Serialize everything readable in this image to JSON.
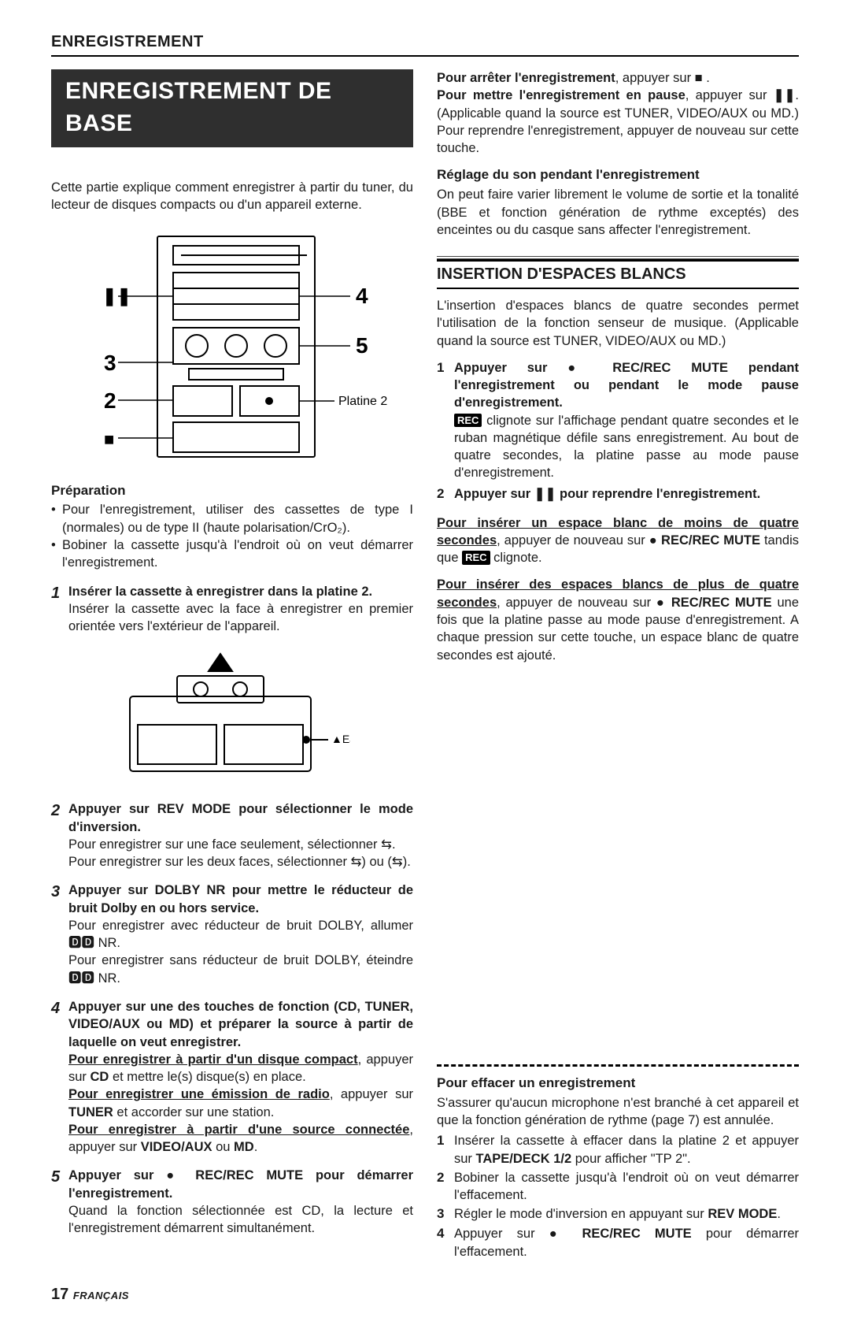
{
  "header": "ENREGISTREMENT",
  "title": "ENREGISTREMENT DE BASE",
  "left": {
    "intro": "Cette partie explique comment enregistrer à partir du tuner, du lecteur de disques compacts ou d'un appareil externe.",
    "diagram1": {
      "labels": {
        "n2": "2",
        "n3": "3",
        "n4": "4",
        "n5": "5",
        "platine": "Platine 2",
        "pause": "❚❚",
        "stop": "■"
      }
    },
    "prep_title": "Préparation",
    "prep": [
      "Pour l'enregistrement, utiliser des cassettes de type I (normales) ou de type II (haute polarisation/CrO₂).",
      "Bobiner la cassette jusqu'à l'endroit où on veut démarrer l'enregistrement."
    ],
    "steps": [
      {
        "num": "1",
        "title": "Insérer la cassette à enregistrer dans la platine 2.",
        "body": "Insérer la cassette avec la face à enregistrer en premier orientée vers l'extérieur de l'appareil."
      },
      {
        "num": "2",
        "title": "Appuyer sur REV MODE pour sélectionner le mode d'inversion.",
        "body": "Pour enregistrer sur une face seulement, sélectionner ⇆.\nPour enregistrer sur les deux faces, sélectionner ⇆) ou (⇆)."
      },
      {
        "num": "3",
        "title": "Appuyer sur DOLBY NR pour mettre le réducteur de bruit Dolby en ou hors service.",
        "body": "Pour enregistrer avec réducteur de bruit DOLBY, allumer 🅳🅳 NR.\nPour enregistrer sans réducteur de bruit DOLBY, éteindre 🅳🅳 NR."
      },
      {
        "num": "4",
        "title": "Appuyer sur une des touches de fonction (CD, TUNER, VIDEO/AUX ou MD) et préparer la source à partir de laquelle on veut enregistrer.",
        "body_html": true,
        "segments": [
          {
            "u": "Pour enregistrer à partir d'un disque compact",
            "t": ", appuyer sur "
          },
          {
            "b": "CD"
          },
          {
            "t": " et mettre le(s) disque(s) en place.\n"
          },
          {
            "u": "Pour enregistrer une émission de radio",
            "t": ", appuyer sur "
          },
          {
            "b": "TUNER"
          },
          {
            "t": " et accorder sur une station.\n"
          },
          {
            "u": "Pour enregistrer à partir d'une source connectée",
            "t": ", appuyer sur "
          },
          {
            "b": "VIDEO/AUX"
          },
          {
            "t": " ou "
          },
          {
            "b": "MD"
          },
          {
            "t": "."
          }
        ]
      },
      {
        "num": "5",
        "title": "Appuyer sur ● REC/REC MUTE pour démarrer l'enregistrement.",
        "body": "Quand la fonction sélectionnée est CD, la lecture et l'enregistrement démarrent simultanément."
      }
    ],
    "eject": "▲EJECT"
  },
  "right": {
    "p1_segments": [
      {
        "b": "Pour arrêter l'enregistrement"
      },
      {
        "t": ", appuyer sur ■ .\n"
      },
      {
        "b": "Pour mettre l'enregistrement en pause"
      },
      {
        "t": ", appuyer sur "
      },
      {
        "b": "❚❚"
      },
      {
        "t": ". (Applicable quand la source est TUNER, VIDEO/AUX ou MD.) Pour reprendre l'enregistrement, appuyer de nouveau sur cette touche."
      }
    ],
    "reglage_title": "Réglage du son pendant l'enregistrement",
    "reglage_body": "On peut faire varier librement le volume de sortie et la tonalité (BBE et fonction génération de rythme exceptés) des enceintes ou du casque sans affecter l'enregistrement.",
    "insertion_title": "INSERTION D'ESPACES BLANCS",
    "insertion_intro": "L'insertion d'espaces blancs de quatre secondes permet l'utilisation de la fonction senseur de musique. (Applicable quand la source est TUNER, VIDEO/AUX ou MD.)",
    "insertion_steps": [
      {
        "num": "1",
        "title": "Appuyer sur ● REC/REC MUTE pendant l'enregistrement ou pendant le mode pause d'enregistrement.",
        "body_segments": [
          {
            "rec": "REC"
          },
          {
            "t": " clignote sur l'affichage pendant quatre secondes et le ruban magnétique défile sans enregistrement. Au bout de quatre secondes, la platine passe au mode pause d'enregistrement."
          }
        ]
      },
      {
        "num": "2",
        "title": "Appuyer sur ❚❚ pour reprendre l'enregistrement."
      }
    ],
    "ins_less_u": "Pour insérer un espace blanc de moins de quatre secondes",
    "ins_less_segments": [
      {
        "t": ", appuyer de nouveau sur "
      },
      {
        "b": "● REC/REC MUTE"
      },
      {
        "t": " tandis que "
      },
      {
        "rec": "REC"
      },
      {
        "t": " clignote."
      }
    ],
    "ins_more_u": "Pour insérer des espaces blancs de plus de quatre secondes",
    "ins_more_segments": [
      {
        "t": ", appuyer de nouveau sur "
      },
      {
        "b": "● REC/REC MUTE"
      },
      {
        "t": " une fois que la platine passe au mode pause d'enregistrement. A chaque pression sur cette touche, un espace blanc de quatre secondes est ajouté."
      }
    ],
    "erase_title": "Pour effacer un enregistrement",
    "erase_intro": "S'assurer qu'aucun microphone n'est branché à cet appareil et que la fonction génération de rythme (page 7) est annulée.",
    "erase_steps": [
      {
        "num": "1",
        "segments": [
          {
            "t": "Insérer la cassette à effacer dans la platine 2 et appuyer sur "
          },
          {
            "b": "TAPE/DECK 1/2"
          },
          {
            "t": " pour afficher \"TP 2\"."
          }
        ]
      },
      {
        "num": "2",
        "segments": [
          {
            "t": "Bobiner la cassette jusqu'à l'endroit où on veut démarrer l'effacement."
          }
        ]
      },
      {
        "num": "3",
        "segments": [
          {
            "t": "Régler le mode d'inversion en appuyant sur "
          },
          {
            "b": "REV MODE"
          },
          {
            "t": "."
          }
        ]
      },
      {
        "num": "4",
        "segments": [
          {
            "t": "Appuyer sur "
          },
          {
            "b": "● REC/REC MUTE"
          },
          {
            "t": " pour démarrer l'effacement."
          }
        ]
      }
    ]
  },
  "footer": {
    "page": "17",
    "lang": "FRANÇAIS"
  }
}
